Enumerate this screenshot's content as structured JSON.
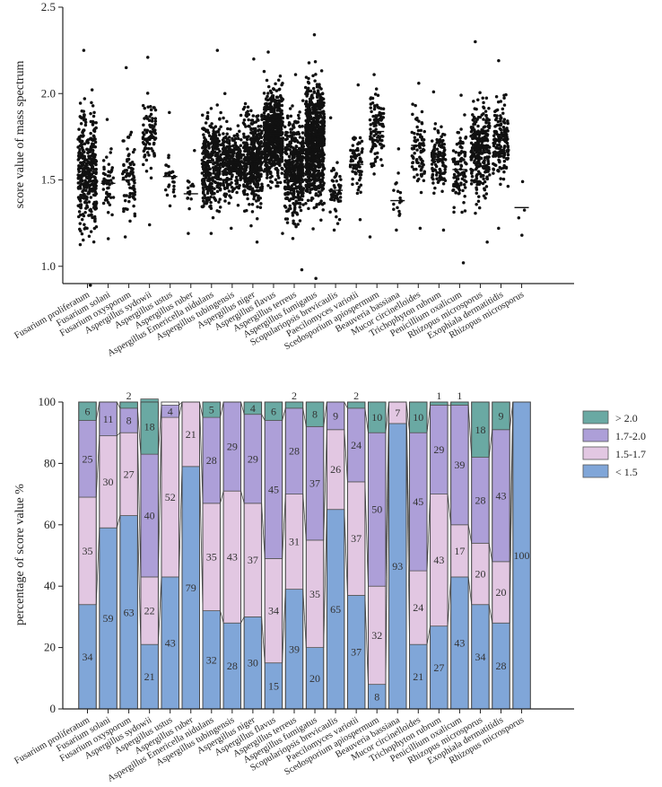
{
  "chart_data": [
    {
      "type": "scatter",
      "title": "",
      "xlabel": "",
      "ylabel": "score value of mass spectrum",
      "ylim": [
        0.9,
        2.5
      ],
      "yticks": [
        "1.0",
        "1.5",
        "2.0",
        "2.5"
      ],
      "ytick_values": [
        1.0,
        1.5,
        2.0,
        2.5
      ],
      "categories": [
        "Fusarium proliferatum",
        "Fusarium solani",
        "Fusarium oxysporum",
        "Aspergillus sydowii",
        "Aspergillus ustus",
        "Aspergillus ruber",
        "Aspergillus Emericella nidulans",
        "Aspergillus tubingensis",
        "Aspergillus niger",
        "Aspergillus flavus",
        "Aspergillus terreus",
        "Aspergillus fumigatus",
        "Scopulariopsis brevicaulis",
        "Paecilomyces variotii",
        "Scedosporium apiospermum",
        "Beauveria bassiana",
        "Mucor circinelloides",
        "Trichophyton rubrum",
        "Penicillium oxalicum",
        "Rhizopus microsporus",
        "Exophiala dermatitidis",
        "Rhizopus microsporus"
      ],
      "series": [
        {
          "min": 0.89,
          "max": 2.25,
          "median": 1.55,
          "n": 380
        },
        {
          "min": 1.16,
          "max": 1.85,
          "median": 1.48,
          "n": 50
        },
        {
          "min": 1.17,
          "max": 2.15,
          "median": 1.5,
          "n": 80
        },
        {
          "min": 1.24,
          "max": 2.21,
          "median": 1.74,
          "n": 90
        },
        {
          "min": 1.35,
          "max": 1.89,
          "median": 1.52,
          "n": 28
        },
        {
          "min": 1.19,
          "max": 1.67,
          "median": 1.42,
          "n": 16
        },
        {
          "min": 1.19,
          "max": 2.25,
          "median": 1.6,
          "n": 330
        },
        {
          "min": 1.22,
          "max": 2.0,
          "median": 1.6,
          "n": 300
        },
        {
          "min": 1.14,
          "max": 2.2,
          "median": 1.62,
          "n": 420
        },
        {
          "min": 1.19,
          "max": 2.24,
          "median": 1.77,
          "n": 650
        },
        {
          "min": 0.98,
          "max": 2.11,
          "median": 1.57,
          "n": 420
        },
        {
          "min": 0.93,
          "max": 2.34,
          "median": 1.73,
          "n": 750
        },
        {
          "min": 1.21,
          "max": 1.86,
          "median": 1.44,
          "n": 55
        },
        {
          "min": 1.27,
          "max": 2.05,
          "median": 1.59,
          "n": 75
        },
        {
          "min": 1.17,
          "max": 2.11,
          "median": 1.78,
          "n": 110
        },
        {
          "min": 1.21,
          "max": 1.68,
          "median": 1.38,
          "n": 18
        },
        {
          "min": 1.22,
          "max": 2.06,
          "median": 1.7,
          "n": 85
        },
        {
          "min": 1.21,
          "max": 2.01,
          "median": 1.62,
          "n": 120
        },
        {
          "min": 1.02,
          "max": 1.99,
          "median": 1.56,
          "n": 100
        },
        {
          "min": 1.14,
          "max": 2.3,
          "median": 1.68,
          "n": 270
        },
        {
          "min": 1.22,
          "max": 2.19,
          "median": 1.73,
          "n": 160
        },
        {
          "min": 1.18,
          "max": 1.49,
          "median": 1.34,
          "n": 4
        }
      ]
    },
    {
      "type": "bar",
      "stacked": true,
      "title": "",
      "xlabel": "",
      "ylabel": "percentage of score value %",
      "ylim": [
        0,
        100
      ],
      "yticks": [
        "0",
        "20",
        "40",
        "60",
        "80",
        "100"
      ],
      "ytick_values": [
        0,
        20,
        40,
        60,
        80,
        100
      ],
      "legend_position": "right",
      "categories": [
        "Fusarium proliferatum",
        "Fusarium solani",
        "Fusarium oxysporum",
        "Aspergillus sydowii",
        "Aspergillus ustus",
        "Aspergillus ruber",
        "Aspergillus Emericella nidulans",
        "Aspergillus tubingensis",
        "Aspergillus niger",
        "Aspergillus flavus",
        "Aspergillus terreus",
        "Aspergillus fumigatus",
        "Scopulariopsis brevicaulis",
        "Paecilomyces variotii",
        "Scedosporium apiospermum",
        "Beauveria bassiana",
        "Mucor circinelloides",
        "Trichophyton rubrum",
        "Penicillium oxalicum",
        "Rhizopus microsporus",
        "Exophiala dermatitidis",
        "Rhizopus microsporus"
      ],
      "series": [
        {
          "name": "< 1.5",
          "color": "#80a6d8",
          "values": [
            34,
            59,
            63,
            21,
            43,
            79,
            32,
            28,
            30,
            15,
            39,
            20,
            65,
            37,
            8,
            93,
            21,
            27,
            43,
            34,
            28,
            100
          ]
        },
        {
          "name": "1.5-1.7",
          "color": "#e2c7e2",
          "values": [
            35,
            30,
            27,
            22,
            52,
            21,
            35,
            43,
            37,
            34,
            31,
            35,
            26,
            37,
            32,
            7,
            24,
            43,
            17,
            20,
            20,
            0
          ]
        },
        {
          "name": "1.7-2.0",
          "color": "#ad9fd8",
          "values": [
            25,
            11,
            8,
            40,
            4,
            0,
            28,
            29,
            29,
            45,
            28,
            37,
            9,
            24,
            50,
            0,
            45,
            29,
            39,
            28,
            43,
            0
          ]
        },
        {
          "name": "> 2.0",
          "color": "#6aa9a3",
          "values": [
            6,
            0,
            2,
            18,
            0,
            0,
            5,
            0,
            4,
            6,
            2,
            8,
            0,
            2,
            10,
            0,
            10,
            1,
            1,
            18,
            9,
            0
          ]
        }
      ],
      "labels": [
        [
          "34",
          "35",
          "25",
          "6"
        ],
        [
          "59",
          "30",
          "11",
          ""
        ],
        [
          "63",
          "27",
          "8",
          "2"
        ],
        [
          "21",
          "22",
          "40",
          "18"
        ],
        [
          "43",
          "52",
          "4",
          ""
        ],
        [
          "79",
          "21",
          "",
          ""
        ],
        [
          "32",
          "35",
          "28",
          "5"
        ],
        [
          "28",
          "43",
          "29",
          ""
        ],
        [
          "30",
          "37",
          "29",
          "4"
        ],
        [
          "15",
          "34",
          "45",
          "6"
        ],
        [
          "39",
          "31",
          "28",
          "2"
        ],
        [
          "20",
          "35",
          "37",
          "8"
        ],
        [
          "65",
          "26",
          "9",
          ""
        ],
        [
          "37",
          "37",
          "24",
          "2"
        ],
        [
          "8",
          "32",
          "50",
          "10"
        ],
        [
          "93",
          "7",
          "",
          ""
        ],
        [
          "21",
          "24",
          "45",
          "10"
        ],
        [
          "27",
          "43",
          "29",
          "1"
        ],
        [
          "43",
          "17",
          "39",
          "1"
        ],
        [
          "34",
          "20",
          "28",
          "18"
        ],
        [
          "28",
          "20",
          "43",
          "9"
        ],
        [
          "100",
          "",
          "",
          ""
        ]
      ],
      "legend": [
        "> 2.0",
        "1.7-2.0",
        "1.5-1.7",
        "< 1.5"
      ]
    }
  ]
}
